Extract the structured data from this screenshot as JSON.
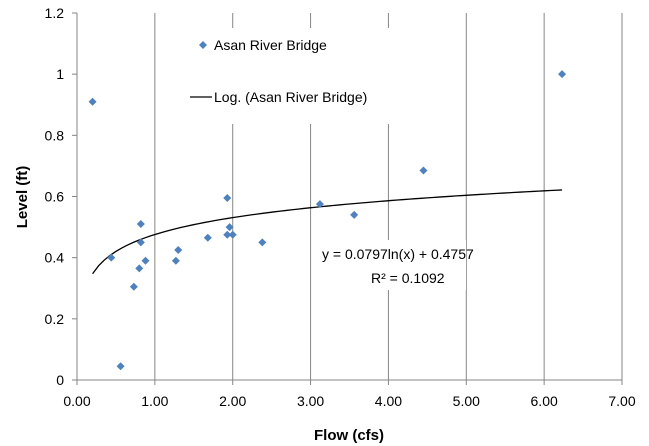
{
  "chart_data": {
    "type": "scatter",
    "xlabel": "Flow (cfs)",
    "ylabel": "Level (ft)",
    "xlim": [
      0,
      7
    ],
    "ylim": [
      0,
      1.2
    ],
    "x_ticks": [
      "0.00",
      "1.00",
      "2.00",
      "3.00",
      "4.00",
      "5.00",
      "6.00",
      "7.00"
    ],
    "y_ticks": [
      "0",
      "0.2",
      "0.4",
      "0.6",
      "0.8",
      "1",
      "1.2"
    ],
    "grid": "vertical",
    "legend_position": "top-left",
    "series": [
      {
        "name": "Asan River Bridge",
        "color": "#4F81BD",
        "marker": "diamond",
        "x": [
          0.2,
          0.44,
          0.56,
          0.73,
          0.8,
          0.82,
          0.82,
          0.88,
          1.27,
          1.3,
          1.68,
          1.93,
          1.93,
          1.96,
          2.0,
          2.38,
          3.12,
          3.56,
          4.45,
          6.23
        ],
        "y": [
          0.91,
          0.4,
          0.045,
          0.305,
          0.365,
          0.45,
          0.51,
          0.39,
          0.39,
          0.425,
          0.465,
          0.595,
          0.475,
          0.5,
          0.475,
          0.45,
          0.575,
          0.54,
          0.685,
          1.0
        ]
      }
    ],
    "trendline": {
      "name": "Log. (Asan River Bridge)",
      "type": "logarithmic",
      "a": 0.0797,
      "b": 0.4757,
      "x_range": [
        0.2,
        6.23
      ],
      "color": "#000000",
      "equation_label": "y = 0.0797ln(x) + 0.4757",
      "r2_label": "R² = 0.1092"
    }
  }
}
